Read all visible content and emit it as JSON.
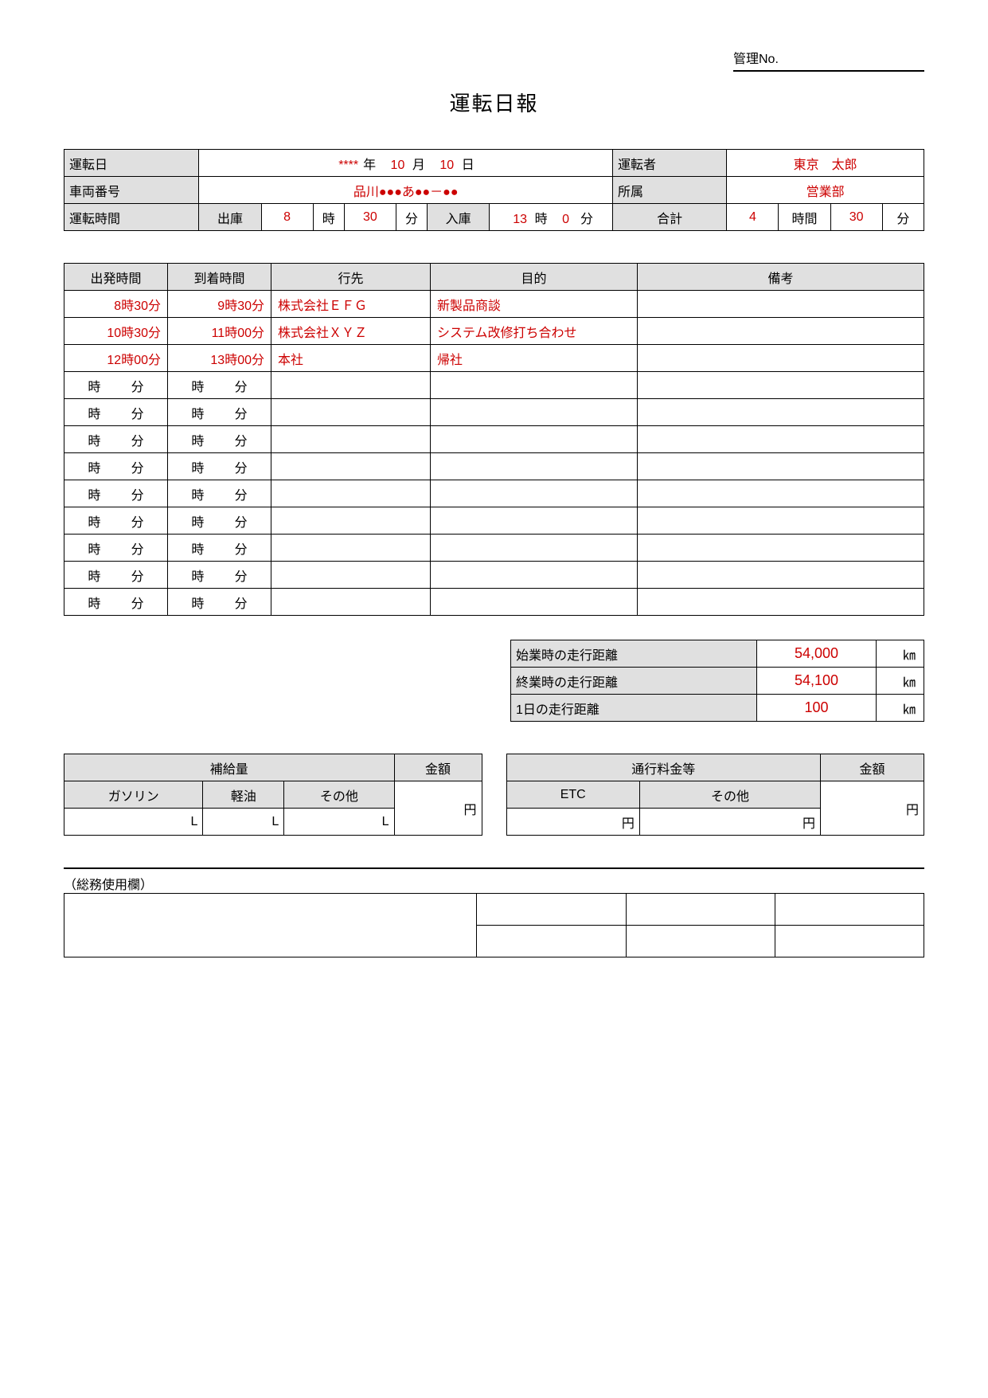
{
  "management": {
    "label": "管理No."
  },
  "title": "運転日報",
  "header": {
    "labels": {
      "date": "運転日",
      "driver": "運転者",
      "vehicle": "車両番号",
      "dept": "所属",
      "drive_time": "運転時間",
      "depart": "出庫",
      "arrive": "入庫",
      "total": "合計",
      "year": "年",
      "month": "月",
      "day": "日",
      "hour": "時",
      "minute": "分",
      "hours": "時間"
    },
    "date": {
      "year": "****",
      "month": "10",
      "day": "10"
    },
    "driver": "東京　太郎",
    "vehicle": "品川●●●あ●●－●●",
    "dept": "営業部",
    "depart": {
      "hour": "8",
      "minute": "30"
    },
    "arrive": {
      "hour": "13",
      "minute": "0"
    },
    "total": {
      "hours": "4",
      "minutes": "30"
    }
  },
  "trips": {
    "columns": {
      "dep": "出発時間",
      "arr": "到着時間",
      "dest": "行先",
      "purpose": "目的",
      "notes": "備考"
    },
    "unit_labels": {
      "hour": "時",
      "minute": "分"
    },
    "rows": [
      {
        "dep": "8時30分",
        "arr": "9時30分",
        "dest": "株式会社ＥＦＧ",
        "purpose": "新製品商談",
        "notes": ""
      },
      {
        "dep": "10時30分",
        "arr": "11時00分",
        "dest": "株式会社ＸＹＺ",
        "purpose": "システム改修打ち合わせ",
        "notes": ""
      },
      {
        "dep": "12時00分",
        "arr": "13時00分",
        "dest": "本社",
        "purpose": "帰社",
        "notes": ""
      }
    ],
    "empty_rows": 9
  },
  "distance": {
    "labels": {
      "start": "始業時の走行距離",
      "end": "終業時の走行距離",
      "day": "1日の走行距離",
      "unit": "㎞"
    },
    "start": "54,000",
    "end": "54,100",
    "day": "100"
  },
  "fuel": {
    "title": "補給量",
    "amount": "金額",
    "cols": {
      "gas": "ガソリン",
      "diesel": "軽油",
      "other": "その他"
    },
    "unit_vol": "L",
    "unit_money": "円"
  },
  "toll": {
    "title": "通行料金等",
    "amount": "金額",
    "cols": {
      "etc": "ETC",
      "other": "その他"
    },
    "unit_money": "円"
  },
  "admin": {
    "label": "（総務使用欄）"
  },
  "colors": {
    "accent": "#cc0000",
    "header_bg": "#e0e0e0",
    "border": "#000000",
    "background": "#ffffff"
  }
}
